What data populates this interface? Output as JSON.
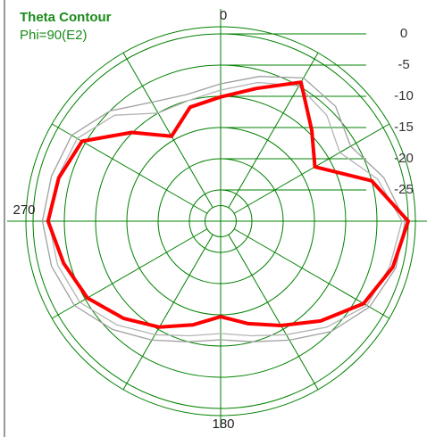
{
  "chart_data": {
    "type": "polar",
    "title": "Theta Contour",
    "subtitle": "Phi=90(E2)",
    "theta": [
      0,
      15,
      30,
      45,
      60,
      75,
      90,
      105,
      120,
      135,
      150,
      165,
      180,
      195,
      210,
      225,
      240,
      255,
      270,
      285,
      300,
      315,
      330,
      345
    ],
    "series": [
      {
        "color": "#ff0000",
        "values": [
          -10.1,
          -8,
          -4.3,
          -9.4,
          -12.6,
          -5,
          0,
          -1.5,
          -3.6,
          -7.4,
          -10.7,
          -13,
          -14.7,
          -12.8,
          -10.4,
          -8,
          -5.4,
          -4,
          -2.4,
          -3.2,
          -4.4,
          -9.9,
          -14.3,
          -11.1
        ]
      },
      {
        "color": "#a0a0a0",
        "values": [
          -8,
          -6,
          -3.5,
          -4,
          -6,
          -3,
          -0.5,
          -1,
          -2.5,
          -5,
          -8,
          -10,
          -11,
          -10,
          -8,
          -5.5,
          -3,
          -2,
          -1.5,
          -2,
          -2.5,
          -5,
          -8,
          -9
        ]
      },
      {
        "color": "#b4b4b4",
        "values": [
          -9,
          -7,
          -5,
          -6,
          -8,
          -4,
          -1,
          -2,
          -3,
          -6,
          -9,
          -11,
          -12,
          -11,
          -9,
          -6.5,
          -4,
          -3,
          -2.5,
          -3,
          -3.5,
          -6,
          -10,
          -10
        ]
      }
    ],
    "rlim": [
      -30,
      0
    ],
    "rticks": [
      0,
      -5,
      -10,
      -15,
      -20,
      -25
    ],
    "thetagrid": [
      0,
      30,
      60,
      90,
      120,
      150,
      180,
      210,
      240,
      270,
      300,
      330
    ],
    "thetaticks": [
      0,
      180,
      270
    ],
    "grid_color": "#008000"
  }
}
